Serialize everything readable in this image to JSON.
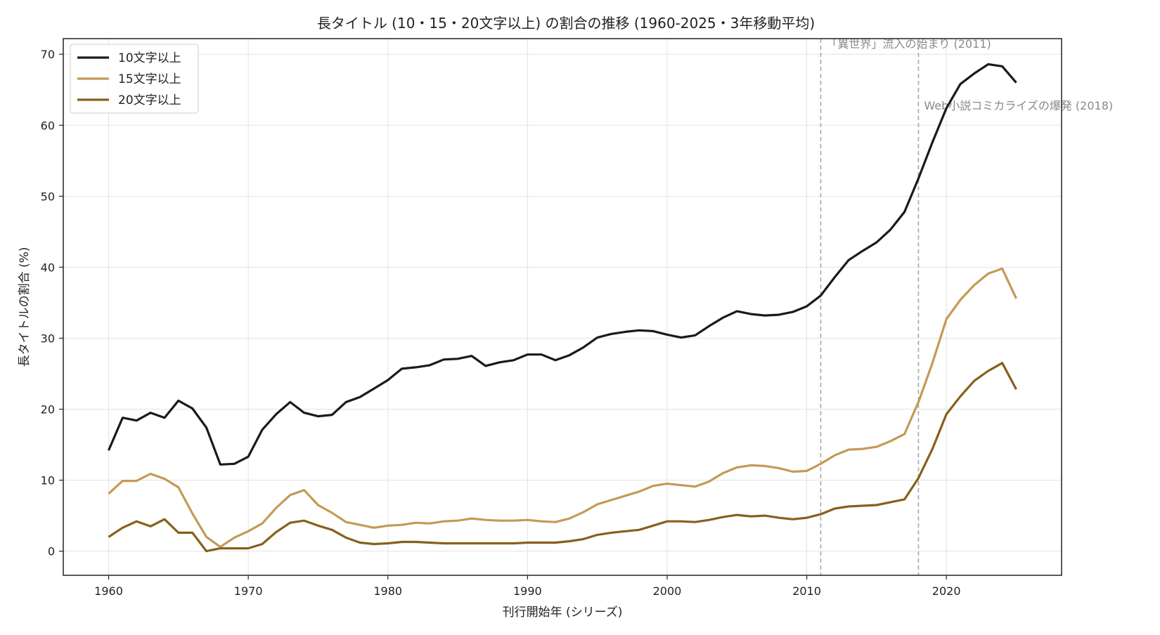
{
  "chart_data": {
    "type": "line",
    "title": "長タイトル (10・15・20文字以上) の割合の推移 (1960-2025・3年移動平均)",
    "xlabel": "刊行開始年 (シリーズ)",
    "ylabel": "長タイトルの割合 (%)",
    "xlim": [
      1956.75,
      2028.25
    ],
    "ylim": [
      -3.4,
      72.2
    ],
    "xticks": [
      1960,
      1970,
      1980,
      1990,
      2000,
      2010,
      2020
    ],
    "yticks": [
      0,
      10,
      20,
      30,
      40,
      50,
      60,
      70
    ],
    "grid": true,
    "legend_position": "top-left",
    "x": [
      1960,
      1961,
      1962,
      1963,
      1964,
      1965,
      1966,
      1967,
      1968,
      1969,
      1970,
      1971,
      1972,
      1973,
      1974,
      1975,
      1976,
      1977,
      1978,
      1979,
      1980,
      1981,
      1982,
      1983,
      1984,
      1985,
      1986,
      1987,
      1988,
      1989,
      1990,
      1991,
      1992,
      1993,
      1994,
      1995,
      1996,
      1997,
      1998,
      1999,
      2000,
      2001,
      2002,
      2003,
      2004,
      2005,
      2006,
      2007,
      2008,
      2009,
      2010,
      2011,
      2012,
      2013,
      2014,
      2015,
      2016,
      2017,
      2018,
      2019,
      2020,
      2021,
      2022,
      2023,
      2024,
      2025
    ],
    "series": [
      {
        "name": "10文字以上",
        "color": "#1a1a1a",
        "values": [
          14.2,
          18.8,
          18.4,
          19.5,
          18.8,
          21.2,
          20.1,
          17.4,
          12.2,
          12.3,
          13.3,
          17.1,
          19.3,
          21.0,
          19.5,
          19.0,
          19.2,
          21.0,
          21.7,
          22.9,
          24.1,
          25.7,
          25.9,
          26.2,
          27.0,
          27.1,
          27.5,
          26.1,
          26.6,
          26.9,
          27.7,
          27.7,
          26.9,
          27.6,
          28.7,
          30.1,
          30.6,
          30.9,
          31.1,
          31.0,
          30.5,
          30.1,
          30.4,
          31.7,
          32.9,
          33.8,
          33.4,
          33.2,
          33.3,
          33.7,
          34.5,
          36.0,
          38.6,
          41.0,
          42.3,
          43.5,
          45.3,
          47.8,
          52.5,
          57.6,
          62.4,
          65.8,
          67.3,
          68.6,
          68.3,
          66.0
        ]
      },
      {
        "name": "15文字以上",
        "color": "#c49a55",
        "values": [
          8.1,
          9.9,
          9.9,
          10.9,
          10.2,
          9.0,
          5.3,
          2.0,
          0.6,
          1.9,
          2.8,
          3.9,
          6.1,
          7.9,
          8.6,
          6.5,
          5.4,
          4.1,
          3.7,
          3.3,
          3.6,
          3.7,
          4.0,
          3.9,
          4.2,
          4.3,
          4.6,
          4.4,
          4.3,
          4.3,
          4.4,
          4.2,
          4.1,
          4.6,
          5.5,
          6.6,
          7.2,
          7.8,
          8.4,
          9.2,
          9.5,
          9.3,
          9.1,
          9.8,
          11.0,
          11.8,
          12.1,
          12.0,
          11.7,
          11.2,
          11.3,
          12.3,
          13.5,
          14.3,
          14.4,
          14.7,
          15.5,
          16.5,
          21.0,
          26.5,
          32.7,
          35.4,
          37.5,
          39.1,
          39.8,
          35.6
        ]
      },
      {
        "name": "20文字以上",
        "color": "#86611c",
        "values": [
          2.0,
          3.3,
          4.2,
          3.5,
          4.5,
          2.6,
          2.6,
          0.0,
          0.4,
          0.4,
          0.4,
          1.0,
          2.7,
          4.0,
          4.3,
          3.6,
          3.0,
          1.9,
          1.2,
          1.0,
          1.1,
          1.3,
          1.3,
          1.2,
          1.1,
          1.1,
          1.1,
          1.1,
          1.1,
          1.1,
          1.2,
          1.2,
          1.2,
          1.4,
          1.7,
          2.3,
          2.6,
          2.8,
          3.0,
          3.6,
          4.2,
          4.2,
          4.1,
          4.4,
          4.8,
          5.1,
          4.9,
          5.0,
          4.7,
          4.5,
          4.7,
          5.2,
          6.0,
          6.3,
          6.4,
          6.5,
          6.9,
          7.3,
          10.3,
          14.4,
          19.3,
          21.8,
          24.0,
          25.4,
          26.5,
          22.8
        ]
      }
    ],
    "annotations": [
      {
        "x": 2011,
        "label": "「異世界」流入の始まり (2011)",
        "label_y": 71.5
      },
      {
        "x": 2018,
        "label": "Web小説コミカライズの爆発 (2018)",
        "label_y": 62.8
      }
    ]
  }
}
